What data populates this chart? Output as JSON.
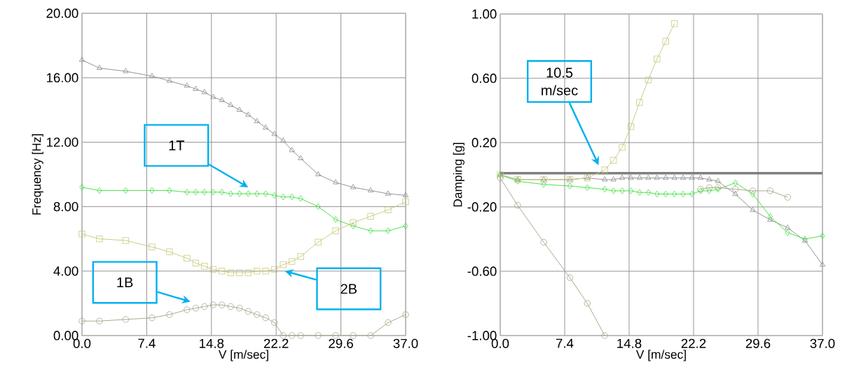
{
  "chart_data": [
    {
      "type": "line",
      "xlabel": "V [m/sec]",
      "ylabel": "Frequency [Hz]",
      "x": [
        0,
        2,
        5,
        8,
        10,
        12,
        13,
        14,
        15,
        16,
        17,
        18,
        19,
        20,
        21,
        22,
        23,
        24,
        25,
        27,
        29,
        31,
        33,
        35,
        37
      ],
      "xlim": [
        0,
        37
      ],
      "ylim": [
        0,
        20
      ],
      "xticks": [
        {
          "value": 0,
          "label": "0.0"
        },
        {
          "value": 7.4,
          "label": "7.4"
        },
        {
          "value": 14.8,
          "label": "14.8"
        },
        {
          "value": 22.2,
          "label": "22.2"
        },
        {
          "value": 29.6,
          "label": "29.6"
        },
        {
          "value": 37,
          "label": "37.0"
        }
      ],
      "yticks": [
        {
          "value": 0,
          "label": "0.00"
        },
        {
          "value": 4,
          "label": "4.00"
        },
        {
          "value": 8,
          "label": "8.00"
        },
        {
          "value": 12,
          "label": "12.00"
        },
        {
          "value": 16,
          "label": "16.00"
        },
        {
          "value": 20,
          "label": "20.00"
        }
      ],
      "grid": true,
      "series": [
        {
          "color": "#8c8c8c",
          "marker": "triangle",
          "values": [
            17.1,
            16.6,
            16.4,
            16.1,
            15.8,
            15.5,
            15.3,
            15.1,
            14.8,
            14.6,
            14.3,
            14.0,
            13.7,
            13.3,
            12.9,
            12.5,
            12.1,
            11.5,
            11.0,
            10.0,
            9.5,
            9.2,
            9.0,
            8.8,
            8.7
          ]
        },
        {
          "color": "#40e040",
          "marker": "diamond",
          "values": [
            9.2,
            9.0,
            9.0,
            9.0,
            9.0,
            8.9,
            8.9,
            8.9,
            8.9,
            8.9,
            8.8,
            8.8,
            8.8,
            8.8,
            8.8,
            8.7,
            8.6,
            8.6,
            8.5,
            8.0,
            7.2,
            6.8,
            6.5,
            6.5,
            6.8
          ]
        },
        {
          "color": "#c8c87c",
          "marker": "square",
          "values": [
            6.3,
            6.0,
            5.9,
            5.5,
            5.2,
            4.8,
            4.5,
            4.3,
            4.1,
            4.0,
            3.9,
            3.9,
            3.9,
            4.0,
            4.0,
            4.1,
            4.4,
            4.6,
            4.9,
            5.8,
            6.5,
            7.0,
            7.4,
            7.8,
            8.3
          ]
        },
        {
          "color": "#a4a488",
          "marker": "circle",
          "values": [
            0.9,
            0.9,
            1.0,
            1.1,
            1.3,
            1.6,
            1.7,
            1.8,
            1.9,
            1.9,
            1.8,
            1.7,
            1.5,
            1.3,
            1.1,
            0.8,
            0,
            0,
            0,
            0,
            0,
            0,
            0,
            0.8,
            1.3
          ]
        }
      ],
      "annotations": [
        "1T",
        "1B",
        "2B"
      ]
    },
    {
      "type": "line",
      "xlabel": "V [m/sec]",
      "ylabel": "Damping [g]",
      "x": [
        0,
        2,
        5,
        8,
        10,
        12,
        13,
        14,
        15,
        16,
        17,
        18,
        19,
        20,
        21,
        22,
        23,
        24,
        25,
        27,
        29,
        31,
        33,
        35,
        37
      ],
      "xlim": [
        0,
        37
      ],
      "ylim": [
        -1,
        1
      ],
      "xticks": [
        {
          "value": 0,
          "label": "0.0"
        },
        {
          "value": 7.4,
          "label": "7.4"
        },
        {
          "value": 14.8,
          "label": "14.8"
        },
        {
          "value": 22.2,
          "label": "22.2"
        },
        {
          "value": 29.6,
          "label": "29.6"
        },
        {
          "value": 37,
          "label": "37.0"
        }
      ],
      "yticks": [
        {
          "value": -1,
          "label": "-1.00"
        },
        {
          "value": -0.6,
          "label": "-0.60"
        },
        {
          "value": -0.2,
          "label": "-0.20"
        },
        {
          "value": 0.2,
          "label": "0.20"
        },
        {
          "value": 0.6,
          "label": "0.60"
        },
        {
          "value": 1,
          "label": "1.00"
        }
      ],
      "grid": true,
      "ref_lines": [
        {
          "axis": "y",
          "value": 0.01,
          "color": "#7f7f7f"
        }
      ],
      "series": [
        {
          "color": "#8c8c8c",
          "marker": "triangle",
          "values": [
            0,
            -0.03,
            -0.03,
            -0.03,
            -0.02,
            -0.03,
            -0.03,
            -0.02,
            -0.02,
            -0.02,
            -0.02,
            -0.02,
            -0.02,
            -0.02,
            -0.02,
            -0.02,
            -0.02,
            -0.03,
            -0.04,
            -0.12,
            -0.22,
            -0.28,
            -0.33,
            -0.41,
            -0.56
          ]
        },
        {
          "color": "#40e040",
          "marker": "diamond",
          "values": [
            0,
            -0.04,
            -0.06,
            -0.07,
            -0.08,
            -0.09,
            -0.1,
            -0.1,
            -0.1,
            -0.11,
            -0.11,
            -0.12,
            -0.12,
            -0.12,
            -0.12,
            -0.12,
            -0.1,
            -0.1,
            -0.09,
            -0.05,
            -0.12,
            -0.26,
            -0.36,
            -0.4,
            -0.38
          ]
        },
        {
          "color": "#c8c87c",
          "marker": "square",
          "values": [
            0,
            -0.03,
            -0.03,
            -0.03,
            -0.02,
            0.03,
            0.09,
            0.17,
            0.3,
            0.45,
            0.59,
            0.72,
            0.83,
            0.94,
            null,
            null,
            null,
            null,
            null,
            null,
            null,
            null,
            null,
            null,
            null
          ]
        },
        {
          "color": "#a4a488",
          "marker": "circle",
          "values": [
            -0.02,
            -0.19,
            -0.42,
            -0.64,
            -0.8,
            -1.0,
            null,
            null,
            null,
            null,
            null,
            null,
            null,
            null,
            null,
            null,
            -0.09,
            -0.08,
            -0.08,
            -0.09,
            -0.1,
            -0.1,
            -0.14,
            null,
            null
          ]
        }
      ],
      "annotations": [
        "10.5 m/sec"
      ]
    }
  ]
}
